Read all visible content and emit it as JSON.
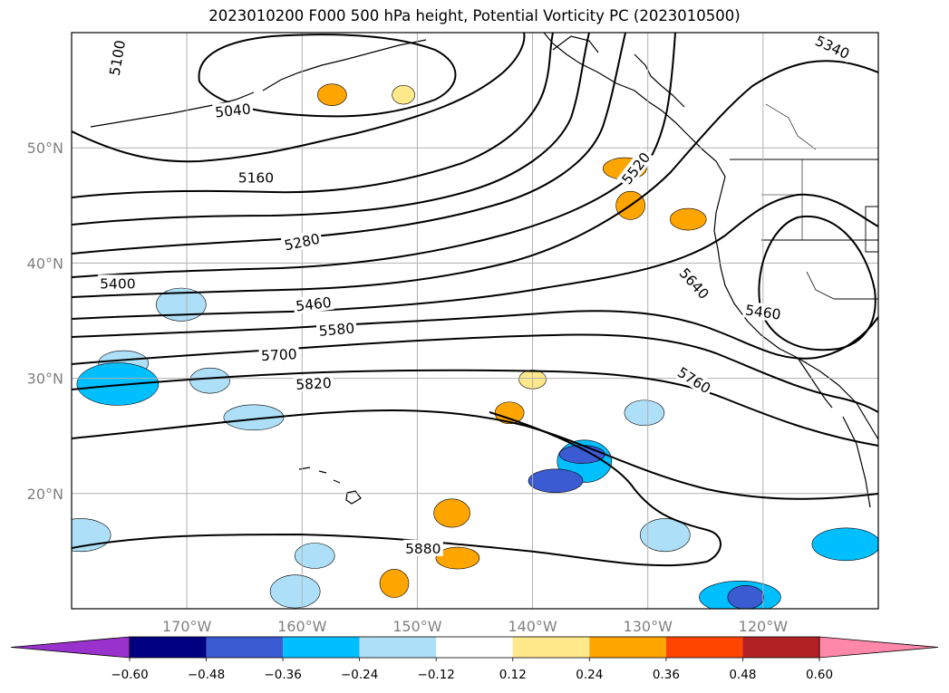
{
  "title": "2023010200 F000 500 hPa height, Potential Vorticity PC (2023010500)",
  "map": {
    "region": "North-East Pacific",
    "lat_range": [
      10,
      60
    ],
    "lon_range": [
      -180,
      -110
    ],
    "lat_ticks": [
      {
        "lat": 20,
        "label": "20°N"
      },
      {
        "lat": 30,
        "label": "30°N"
      },
      {
        "lat": 40,
        "label": "40°N"
      },
      {
        "lat": 50,
        "label": "50°N"
      }
    ],
    "lon_ticks": [
      {
        "lon": -170,
        "label": "170°W"
      },
      {
        "lon": -160,
        "label": "160°W"
      },
      {
        "lon": -150,
        "label": "150°W"
      },
      {
        "lon": -140,
        "label": "140°W"
      },
      {
        "lon": -130,
        "label": "130°W"
      },
      {
        "lon": -120,
        "label": "120°W"
      }
    ],
    "grid": true,
    "height_contours": [
      {
        "label": "5040",
        "lon": -166,
        "lat": 53.2,
        "rot": -6
      },
      {
        "label": "5160",
        "lon": -164,
        "lat": 47.4,
        "rot": 0
      },
      {
        "label": "5280",
        "lon": -160,
        "lat": 41.8,
        "rot": -12
      },
      {
        "label": "5400",
        "lon": -176,
        "lat": 38.2,
        "rot": 0
      },
      {
        "label": "5460",
        "lon": -159,
        "lat": 36.4,
        "rot": -7
      },
      {
        "label": "5580",
        "lon": -157,
        "lat": 34.2,
        "rot": -5
      },
      {
        "label": "5700",
        "lon": -162,
        "lat": 32.0,
        "rot": -3
      },
      {
        "label": "5820",
        "lon": -159,
        "lat": 29.5,
        "rot": -3
      },
      {
        "label": "5880",
        "lon": -149.5,
        "lat": 15.2,
        "rot": 0
      },
      {
        "label": "5640",
        "lon": -126,
        "lat": 38.2,
        "rot": 48
      },
      {
        "label": "5760",
        "lon": -126,
        "lat": 29.8,
        "rot": 32
      },
      {
        "label": "5520",
        "lon": -131,
        "lat": 48.2,
        "rot": -52
      },
      {
        "label": "5460",
        "lon": -120,
        "lat": 35.7,
        "rot": 8
      },
      {
        "label": "5340",
        "lon": -114,
        "lat": 58.7,
        "rot": 25
      },
      {
        "label": "5100",
        "lon": -176,
        "lat": 57.8,
        "rot": -80
      }
    ],
    "pv_regions": [
      {
        "lon": -157.4,
        "lat": 54.6,
        "value": 0.24
      },
      {
        "lon": -151.2,
        "lat": 54.6,
        "value": 0.12
      },
      {
        "lon": -132,
        "lat": 48.2,
        "value": 0.24
      },
      {
        "lon": -131.5,
        "lat": 45.0,
        "value": 0.24
      },
      {
        "lon": -126.5,
        "lat": 43.8,
        "value": 0.24
      },
      {
        "lon": -140,
        "lat": 29.9,
        "value": 0.12
      },
      {
        "lon": -142,
        "lat": 27.0,
        "value": 0.24
      },
      {
        "lon": -147,
        "lat": 18.3,
        "value": 0.24
      },
      {
        "lon": -146.5,
        "lat": 14.4,
        "value": 0.24
      },
      {
        "lon": -152,
        "lat": 12.2,
        "value": 0.24
      },
      {
        "lon": -175.5,
        "lat": 31.3,
        "value": -0.24
      },
      {
        "lon": -176,
        "lat": 29.5,
        "value": -0.36
      },
      {
        "lon": -168,
        "lat": 29.8,
        "value": -0.24
      },
      {
        "lon": -170.5,
        "lat": 36.4,
        "value": -0.24
      },
      {
        "lon": -164.2,
        "lat": 26.6,
        "value": -0.24
      },
      {
        "lon": -135.5,
        "lat": 22.8,
        "value": -0.36
      },
      {
        "lon": -135.7,
        "lat": 23.4,
        "value": -0.48
      },
      {
        "lon": -138,
        "lat": 21.1,
        "value": -0.48
      },
      {
        "lon": -130.3,
        "lat": 27.0,
        "value": -0.24
      },
      {
        "lon": -128.5,
        "lat": 16.4,
        "value": -0.24
      },
      {
        "lon": -122.0,
        "lat": 11.0,
        "value": -0.36
      },
      {
        "lon": -121.5,
        "lat": 11.0,
        "value": -0.48
      },
      {
        "lon": -112.8,
        "lat": 15.6,
        "value": -0.36
      },
      {
        "lon": -179.2,
        "lat": 16.4,
        "value": -0.24
      },
      {
        "lon": -158.9,
        "lat": 14.6,
        "value": -0.24
      },
      {
        "lon": -160.6,
        "lat": 11.5,
        "value": -0.24
      }
    ]
  },
  "colorbar": {
    "labels": [
      "−0.60",
      "−0.48",
      "−0.36",
      "−0.24",
      "−0.12",
      "0.12",
      "0.24",
      "0.36",
      "0.48",
      "0.60"
    ],
    "low_extend_color": "#9932CC",
    "high_extend_color": "#FF88AA",
    "bin_colors": [
      "#000080",
      "#3A5BD1",
      "#00BFFF",
      "#ADE0F8",
      "#FFFFFF",
      "#FFE98A",
      "#FFA500",
      "#FF4500",
      "#B22222"
    ]
  }
}
